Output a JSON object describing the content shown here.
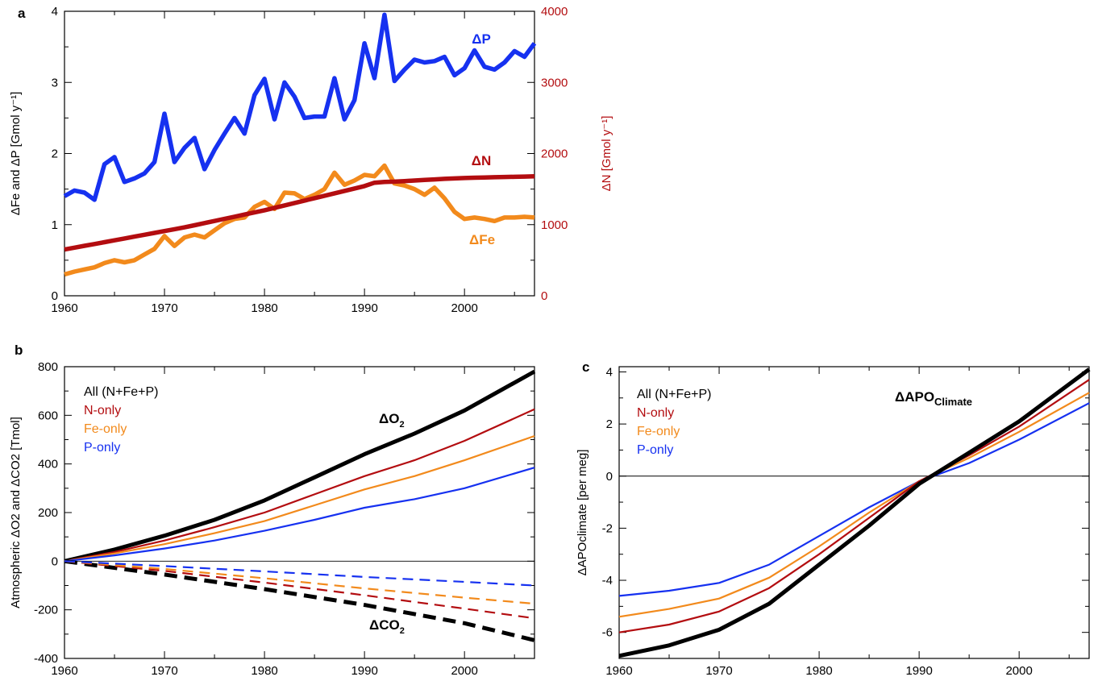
{
  "colors": {
    "all": "#000000",
    "n": "#b30d10",
    "fe": "#f28a1c",
    "p": "#1631f0"
  },
  "chart_data": [
    {
      "panel": "a",
      "type": "line",
      "x": [
        1960,
        1961,
        1962,
        1963,
        1964,
        1965,
        1966,
        1967,
        1968,
        1969,
        1970,
        1971,
        1972,
        1973,
        1974,
        1975,
        1976,
        1977,
        1978,
        1979,
        1980,
        1981,
        1982,
        1983,
        1984,
        1985,
        1986,
        1987,
        1988,
        1989,
        1990,
        1991,
        1992,
        1993,
        1994,
        1995,
        1996,
        1997,
        1998,
        1999,
        2000,
        2001,
        2002,
        2003,
        2004,
        2005,
        2006,
        2007
      ],
      "xlim": [
        1960,
        2007
      ],
      "xticks": [
        1960,
        1970,
        1980,
        1990,
        2000
      ],
      "ylim": [
        0,
        4
      ],
      "yticks": [
        0,
        1,
        2,
        3,
        4
      ],
      "ylabel": "ΔFe and ΔP [Gmol y⁻¹]",
      "y2lim": [
        0,
        4000
      ],
      "y2ticks": [
        0,
        1000,
        2000,
        3000,
        4000
      ],
      "y2label": "ΔN [Gmol y⁻¹]",
      "series": [
        {
          "name": "ΔP",
          "axis": "left",
          "color_key": "p",
          "values": [
            1.4,
            1.48,
            1.45,
            1.35,
            1.85,
            1.95,
            1.6,
            1.65,
            1.72,
            1.88,
            2.56,
            1.88,
            2.08,
            2.22,
            1.78,
            2.05,
            2.28,
            2.5,
            2.28,
            2.82,
            3.05,
            2.48,
            3.0,
            2.8,
            2.5,
            2.52,
            2.52,
            3.06,
            2.48,
            2.75,
            3.55,
            3.06,
            3.95,
            3.02,
            3.18,
            3.32,
            3.28,
            3.3,
            3.36,
            3.1,
            3.2,
            3.45,
            3.22,
            3.18,
            3.28,
            3.44,
            3.36,
            3.55
          ]
        },
        {
          "name": "ΔFe",
          "axis": "left",
          "color_key": "fe",
          "values": [
            0.3,
            0.34,
            0.37,
            0.4,
            0.46,
            0.5,
            0.47,
            0.5,
            0.58,
            0.66,
            0.84,
            0.7,
            0.82,
            0.86,
            0.82,
            0.92,
            1.02,
            1.08,
            1.1,
            1.25,
            1.32,
            1.22,
            1.45,
            1.44,
            1.36,
            1.42,
            1.5,
            1.73,
            1.56,
            1.62,
            1.7,
            1.68,
            1.83,
            1.58,
            1.55,
            1.5,
            1.42,
            1.52,
            1.37,
            1.18,
            1.08,
            1.1,
            1.08,
            1.05,
            1.1,
            1.1,
            1.11,
            1.1
          ]
        },
        {
          "name": "ΔN",
          "axis": "right",
          "color_key": "n",
          "values": [
            650,
            676,
            702,
            728,
            754,
            780,
            806,
            832,
            858,
            884,
            910,
            936,
            962,
            992,
            1022,
            1052,
            1082,
            1112,
            1142,
            1172,
            1202,
            1236,
            1270,
            1304,
            1338,
            1372,
            1406,
            1440,
            1474,
            1508,
            1542,
            1590,
            1601,
            1605,
            1612,
            1620,
            1628,
            1636,
            1644,
            1650,
            1656,
            1660,
            1664,
            1667,
            1670,
            1673,
            1676,
            1680
          ]
        }
      ]
    },
    {
      "panel": "b",
      "type": "line",
      "xlim": [
        1960,
        2007
      ],
      "xticks": [
        1960,
        1970,
        1980,
        1990,
        2000
      ],
      "ylim": [
        -400,
        800
      ],
      "yticks": [
        -400,
        -200,
        0,
        200,
        400,
        600,
        800
      ],
      "ylabel": "Atmospheric ΔO2 and ΔCO2 [Tmol]",
      "zero_line": true,
      "legend": [
        "All (N+Fe+P)",
        "N-only",
        "Fe-only",
        "P-only"
      ],
      "annotations": [
        {
          "text": "ΔO",
          "sub": "2"
        },
        {
          "text": "ΔCO",
          "sub": "2"
        }
      ],
      "series": [
        {
          "name": "All (N+Fe+P)",
          "quantity": "ΔO2",
          "color_key": "all",
          "style": "solid",
          "x": [
            1960,
            1965,
            1970,
            1975,
            1980,
            1985,
            1990,
            1995,
            2000,
            2007
          ],
          "values": [
            0,
            48,
            105,
            170,
            250,
            345,
            440,
            525,
            620,
            780
          ]
        },
        {
          "name": "N-only",
          "quantity": "ΔO2",
          "color_key": "n",
          "style": "solid",
          "x": [
            1960,
            1965,
            1970,
            1975,
            1980,
            1985,
            1990,
            1995,
            2000,
            2007
          ],
          "values": [
            0,
            38,
            85,
            140,
            200,
            275,
            350,
            415,
            495,
            625
          ]
        },
        {
          "name": "Fe-only",
          "quantity": "ΔO2",
          "color_key": "fe",
          "style": "solid",
          "x": [
            1960,
            1965,
            1970,
            1975,
            1980,
            1985,
            1990,
            1995,
            2000,
            2007
          ],
          "values": [
            0,
            32,
            70,
            115,
            165,
            230,
            295,
            350,
            415,
            515
          ]
        },
        {
          "name": "P-only",
          "quantity": "ΔO2",
          "color_key": "p",
          "style": "solid",
          "x": [
            1960,
            1965,
            1970,
            1975,
            1980,
            1985,
            1990,
            1995,
            2000,
            2007
          ],
          "values": [
            0,
            24,
            52,
            85,
            125,
            170,
            220,
            255,
            300,
            385
          ]
        },
        {
          "name": "All (N+Fe+P)",
          "quantity": "ΔCO2",
          "color_key": "all",
          "style": "dashed",
          "x": [
            1960,
            1970,
            1980,
            1990,
            2000,
            2007
          ],
          "values": [
            0,
            -55,
            -115,
            -180,
            -255,
            -325
          ]
        },
        {
          "name": "N-only",
          "quantity": "ΔCO2",
          "color_key": "n",
          "style": "dashed",
          "x": [
            1960,
            1970,
            1980,
            1990,
            2000,
            2007
          ],
          "values": [
            0,
            -40,
            -88,
            -140,
            -195,
            -235
          ]
        },
        {
          "name": "Fe-only",
          "quantity": "ΔCO2",
          "color_key": "fe",
          "style": "dashed",
          "x": [
            1960,
            1970,
            1980,
            1990,
            2000,
            2007
          ],
          "values": [
            0,
            -32,
            -70,
            -112,
            -150,
            -175
          ]
        },
        {
          "name": "P-only",
          "quantity": "ΔCO2",
          "color_key": "p",
          "style": "dashed",
          "x": [
            1960,
            1970,
            1980,
            1990,
            2000,
            2007
          ],
          "values": [
            0,
            -20,
            -42,
            -65,
            -85,
            -100
          ]
        }
      ]
    },
    {
      "panel": "c",
      "type": "line",
      "xlim": [
        1960,
        2007
      ],
      "xticks": [
        1960,
        1970,
        1980,
        1990,
        2000
      ],
      "ylim": [
        -7,
        4.2
      ],
      "yticks": [
        -6,
        -4,
        -2,
        0,
        2,
        4
      ],
      "ylabel": "ΔAPOclimate [per meg]",
      "zero_line": true,
      "legend": [
        "All (N+Fe+P)",
        "N-only",
        "Fe-only",
        "P-only"
      ],
      "annotations": [
        {
          "text": "ΔAPO",
          "sub": "Climate"
        }
      ],
      "series": [
        {
          "name": "All (N+Fe+P)",
          "color_key": "all",
          "x": [
            1960,
            1965,
            1970,
            1975,
            1980,
            1985,
            1990,
            1995,
            2000,
            2007
          ],
          "values": [
            -6.9,
            -6.5,
            -5.9,
            -4.9,
            -3.4,
            -1.9,
            -0.3,
            0.9,
            2.1,
            4.1
          ]
        },
        {
          "name": "N-only",
          "color_key": "n",
          "x": [
            1960,
            1965,
            1970,
            1975,
            1980,
            1985,
            1990,
            1995,
            2000,
            2007
          ],
          "values": [
            -6.0,
            -5.7,
            -5.2,
            -4.3,
            -3.0,
            -1.6,
            -0.2,
            0.8,
            1.9,
            3.7
          ]
        },
        {
          "name": "Fe-only",
          "color_key": "fe",
          "x": [
            1960,
            1965,
            1970,
            1975,
            1980,
            1985,
            1990,
            1995,
            2000,
            2007
          ],
          "values": [
            -5.4,
            -5.1,
            -4.7,
            -3.9,
            -2.7,
            -1.4,
            -0.2,
            0.7,
            1.7,
            3.2
          ]
        },
        {
          "name": "P-only",
          "color_key": "p",
          "x": [
            1960,
            1965,
            1970,
            1975,
            1980,
            1985,
            1990,
            1995,
            2000,
            2007
          ],
          "values": [
            -4.6,
            -4.4,
            -4.1,
            -3.4,
            -2.3,
            -1.2,
            -0.2,
            0.5,
            1.4,
            2.8
          ]
        }
      ]
    }
  ]
}
